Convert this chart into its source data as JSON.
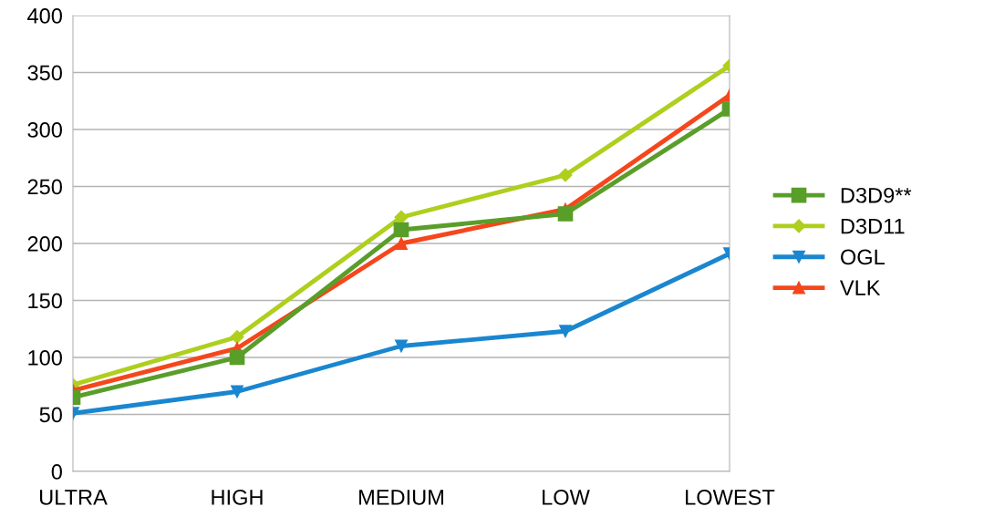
{
  "chart_data": {
    "type": "line",
    "categories": [
      "ULTRA",
      "HIGH",
      "MEDIUM",
      "LOW",
      "LOWEST"
    ],
    "series": [
      {
        "name": "D3D9**",
        "color": "#5a9e2a",
        "marker": "square",
        "values": [
          65,
          100,
          212,
          226,
          318
        ]
      },
      {
        "name": "D3D11",
        "color": "#aecf1d",
        "marker": "diamond",
        "values": [
          76,
          118,
          223,
          260,
          356
        ]
      },
      {
        "name": "OGL",
        "color": "#1a86d0",
        "marker": "triangle_down",
        "values": [
          51,
          70,
          110,
          123,
          191
        ]
      },
      {
        "name": "VLK",
        "color": "#f5461c",
        "marker": "triangle",
        "values": [
          71,
          108,
          200,
          230,
          330
        ]
      }
    ],
    "ylim": [
      0,
      400
    ],
    "yticks": [
      0,
      50,
      100,
      150,
      200,
      250,
      300,
      350,
      400
    ],
    "grid": "y",
    "legend": "right",
    "line_style": "solid"
  }
}
